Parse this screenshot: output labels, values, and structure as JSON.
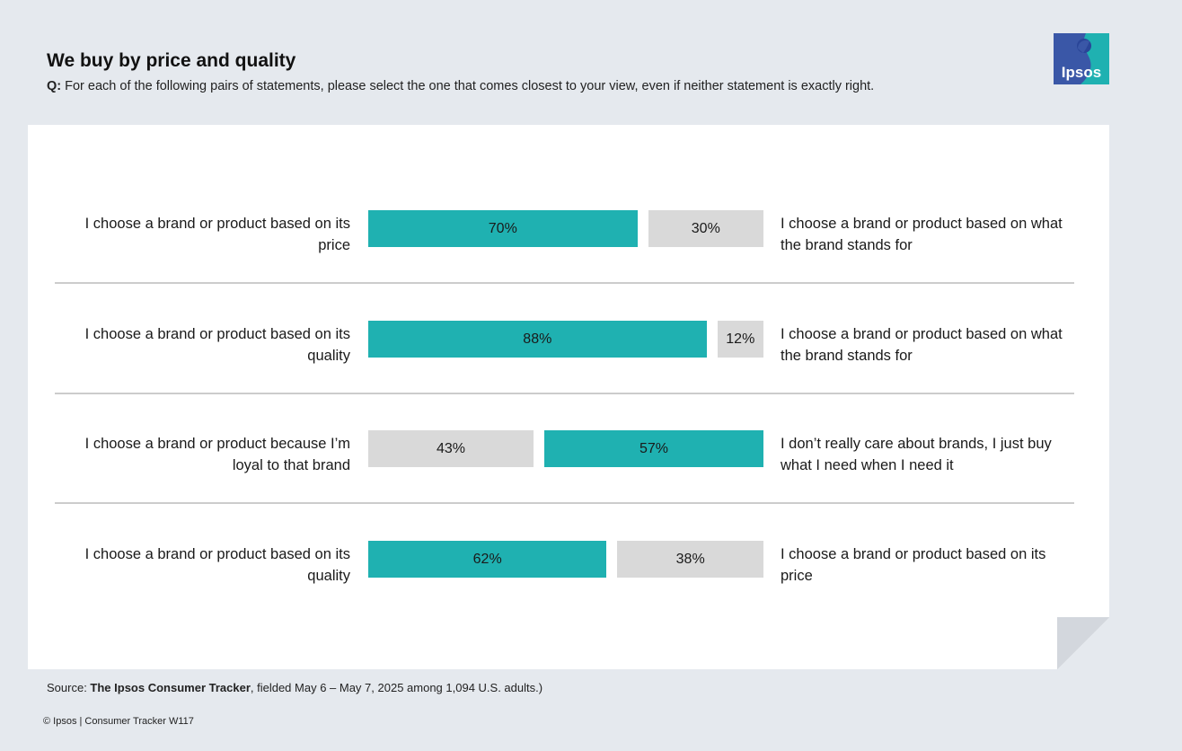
{
  "header": {
    "title": "We buy by price and quality",
    "question_prefix": "Q:",
    "question_text": " For each of the following pairs of statements, please select the one that comes closest to your view, even if neither statement is exactly right."
  },
  "logo": {
    "text": "Ipsos"
  },
  "colors": {
    "teal": "#1fb1b1",
    "grey": "#d9d9d9",
    "background": "#e5e9ee",
    "logo_blue": "#3a57a7"
  },
  "chart_data": {
    "type": "bar",
    "orientation": "horizontal-diverging-pairs",
    "rows": [
      {
        "left_label": "I choose a brand or product based on its price",
        "right_label": "I choose a brand or product based on what the brand stands for",
        "left_value": 70,
        "right_value": 30,
        "highlight": "left",
        "left_text": "70%",
        "right_text": "30%"
      },
      {
        "left_label": "I choose a brand or product based on its quality",
        "right_label": "I choose a brand or product based on what the brand stands for",
        "left_value": 88,
        "right_value": 12,
        "highlight": "left",
        "left_text": "88%",
        "right_text": "12%"
      },
      {
        "left_label": "I choose a brand or product because I’m loyal to that brand",
        "right_label": "I don’t really care about brands, I just buy what I need when I need it",
        "left_value": 43,
        "right_value": 57,
        "highlight": "right",
        "left_text": "43%",
        "right_text": "57%"
      },
      {
        "left_label": "I choose a brand or product based on its quality",
        "right_label": "I choose a brand or product based on its price",
        "left_value": 62,
        "right_value": 38,
        "highlight": "left",
        "left_text": "62%",
        "right_text": "38%"
      }
    ]
  },
  "footer": {
    "source_prefix": "Source: ",
    "source_name": "The Ipsos Consumer Tracker",
    "source_rest": ", fielded May 6 – May 7, 2025 among 1,094 U.S. adults.)",
    "copyright": "© Ipsos | Consumer Tracker W117"
  }
}
